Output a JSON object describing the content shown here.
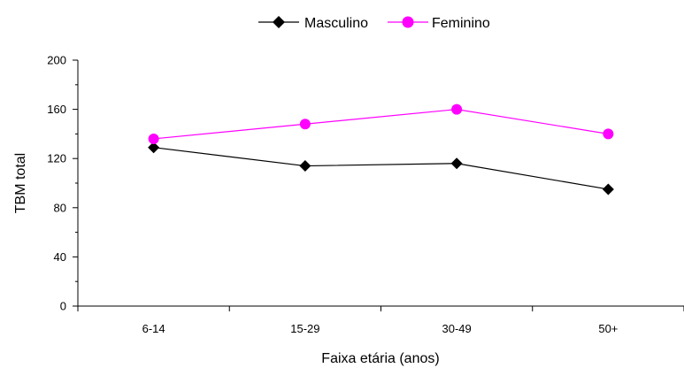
{
  "chart_data": {
    "type": "line",
    "title": "",
    "xlabel": "Faixa etária (anos)",
    "ylabel": "TBM total",
    "categories": [
      "6-14",
      "15-29",
      "30-49",
      "50+"
    ],
    "ylim": [
      0,
      200
    ],
    "yticks": [
      0,
      40,
      80,
      120,
      160,
      200
    ],
    "grid": false,
    "legend": "top-center",
    "series": [
      {
        "name": "Masculino",
        "values": [
          129,
          114,
          116,
          95
        ],
        "color": "#000000",
        "marker": "diamond"
      },
      {
        "name": "Feminino",
        "values": [
          136,
          148,
          160,
          140
        ],
        "color": "#ff00ff",
        "marker": "circle"
      }
    ]
  }
}
